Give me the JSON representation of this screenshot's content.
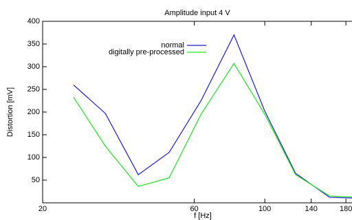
{
  "chart_data": {
    "type": "line",
    "title": "Amplitude input 4 V",
    "xlabel": "f [Hz]",
    "ylabel": "Distortion [mV]",
    "x": [
      25,
      31.5,
      40,
      50,
      63,
      80,
      100,
      125,
      160,
      200
    ],
    "series": [
      {
        "name": "normal",
        "color": "#1a1ac8",
        "values": [
          260,
          197,
          62,
          111,
          225,
          370,
          202,
          65,
          12,
          10
        ]
      },
      {
        "name": "digitally pre-processed",
        "color": "#22e022",
        "values": [
          233,
          125,
          36,
          55,
          195,
          307,
          195,
          62,
          15,
          12
        ]
      }
    ],
    "xscale": "log",
    "xlim": [
      20,
      190
    ],
    "ylim": [
      0,
      400
    ],
    "xticks": [
      20,
      60,
      100,
      140,
      180
    ],
    "yticks": [
      50,
      100,
      150,
      200,
      250,
      300,
      350,
      400
    ],
    "legend": "top-center"
  }
}
